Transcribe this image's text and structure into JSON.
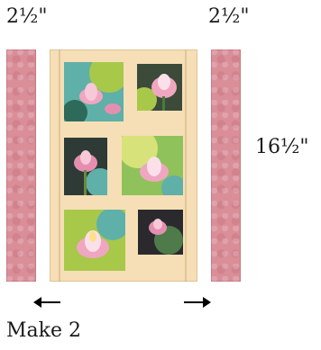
{
  "measurements": {
    "left_strip_width": "2½\"",
    "right_strip_width": "2½\"",
    "panel_length": "16½\""
  },
  "instruction": "Make 2",
  "colors": {
    "strip": "#d98e98",
    "sashing": "#f6dfb6",
    "lotus_pink": "#f0a6c0",
    "leaf_green": "#a8c84a",
    "water_teal": "#5fb0a8",
    "dark_fabric": "#2e2a2a"
  },
  "icons": [
    "arrow-left-icon",
    "arrow-right-icon"
  ]
}
